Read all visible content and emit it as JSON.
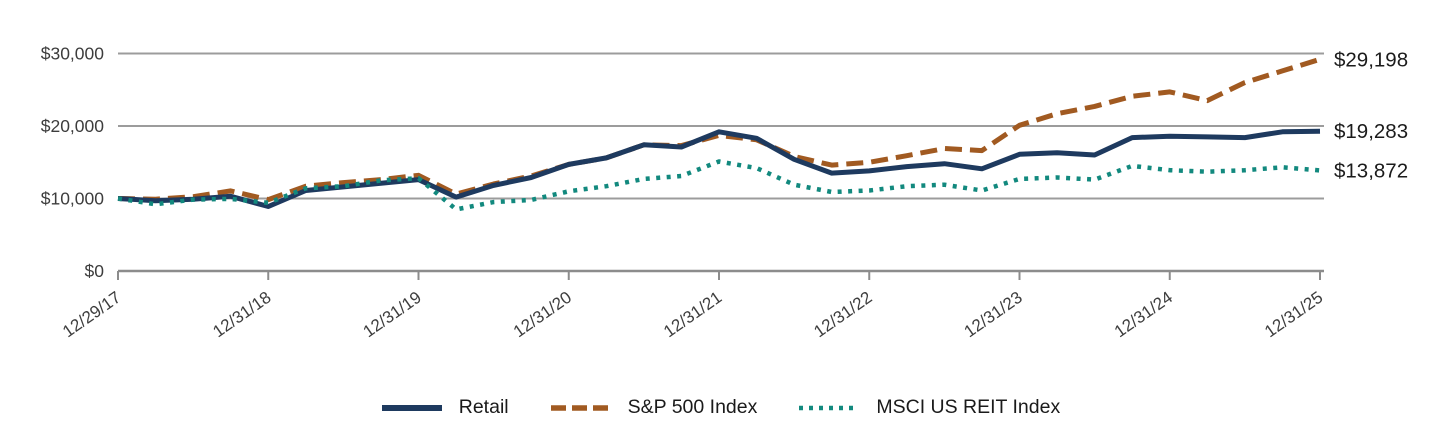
{
  "chart_data": {
    "type": "line",
    "x_tick_labels": [
      "12/29/17",
      "12/31/18",
      "12/31/19",
      "12/31/20",
      "12/31/21",
      "12/31/22",
      "12/31/23",
      "12/31/24",
      "12/31/25"
    ],
    "x_points_per_tick": 4,
    "ylim": [
      0,
      30000
    ],
    "y_ticks": [
      {
        "value": 0,
        "label": "$0"
      },
      {
        "value": 10000,
        "label": "$10,000"
      },
      {
        "value": 20000,
        "label": "$20,000"
      },
      {
        "value": 30000,
        "label": "$30,000"
      }
    ],
    "grid": "horizontal",
    "legend_position": "bottom-center",
    "series": [
      {
        "name": "Retail",
        "style": "solid",
        "color": "#1e3a5f",
        "end_label": "$19,283",
        "values": [
          10000,
          9700,
          9900,
          10300,
          8900,
          11100,
          11600,
          12100,
          12600,
          10200,
          11800,
          12900,
          14700,
          15600,
          17400,
          17100,
          19200,
          18300,
          15400,
          13500,
          13800,
          14400,
          14800,
          14100,
          16100,
          16300,
          16000,
          18400,
          18600,
          18500,
          18400,
          19200,
          19283
        ]
      },
      {
        "name": "S&P 500 Index",
        "style": "dashed",
        "color": "#a15a21",
        "end_label": "$29,198",
        "values": [
          10000,
          9900,
          10250,
          11050,
          9850,
          11700,
          12200,
          12600,
          13200,
          10600,
          12000,
          13100,
          14700,
          15600,
          17400,
          17300,
          18700,
          18100,
          15800,
          14600,
          15000,
          15900,
          16900,
          16600,
          20100,
          21700,
          22700,
          24100,
          24700,
          23500,
          26000,
          27600,
          29198
        ]
      },
      {
        "name": "MSCI US REIT Index",
        "style": "dotted",
        "color": "#12897e",
        "end_label": "$13,872",
        "values": [
          10000,
          9200,
          9850,
          9950,
          9400,
          11400,
          11700,
          12500,
          12800,
          8500,
          9500,
          9800,
          11000,
          11700,
          12700,
          13100,
          15100,
          14200,
          11900,
          10900,
          11100,
          11700,
          11900,
          11100,
          12700,
          12900,
          12600,
          14500,
          13900,
          13700,
          13900,
          14300,
          13872
        ]
      }
    ]
  },
  "colors": {
    "gridline": "#9c9c9c",
    "axis": "#8c8c8c",
    "tick_label": "#3d3d3d",
    "end_label": "#1b1b1b",
    "legend_text": "#1a1a1a",
    "background": "#ffffff"
  }
}
